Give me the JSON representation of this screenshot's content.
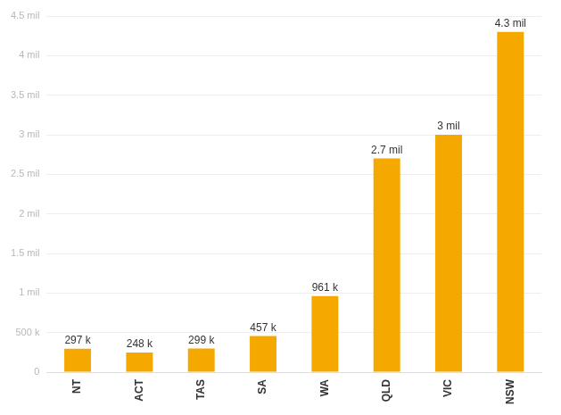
{
  "chart_data": {
    "type": "bar",
    "categories": [
      "NT",
      "ACT",
      "TAS",
      "SA",
      "WA",
      "QLD",
      "VIC",
      "NSW"
    ],
    "values": [
      297000,
      248000,
      299000,
      457000,
      961000,
      2700000,
      3000000,
      4300000
    ],
    "value_labels": [
      "297 k",
      "248 k",
      "299 k",
      "457 k",
      "961 k",
      "2.7 mil",
      "3 mil",
      "4.3 mil"
    ],
    "color": "#f5a800",
    "ylim": [
      0,
      4500000
    ],
    "yticks": [
      0,
      {
        "value": 500000,
        "label": "500 k"
      },
      {
        "value": 1000000,
        "label": "1 mil"
      },
      {
        "value": 1500000,
        "label": "1.5 mil"
      },
      {
        "value": 2000000,
        "label": "2 mil"
      },
      {
        "value": 2500000,
        "label": "2.5 mil"
      },
      {
        "value": 3000000,
        "label": "3 mil"
      },
      {
        "value": 3500000,
        "label": "3.5 mil"
      },
      {
        "value": 4000000,
        "label": "4 mil"
      },
      {
        "value": 4500000,
        "label": "4.5 mil"
      }
    ],
    "grid": true,
    "data_labels": true
  }
}
